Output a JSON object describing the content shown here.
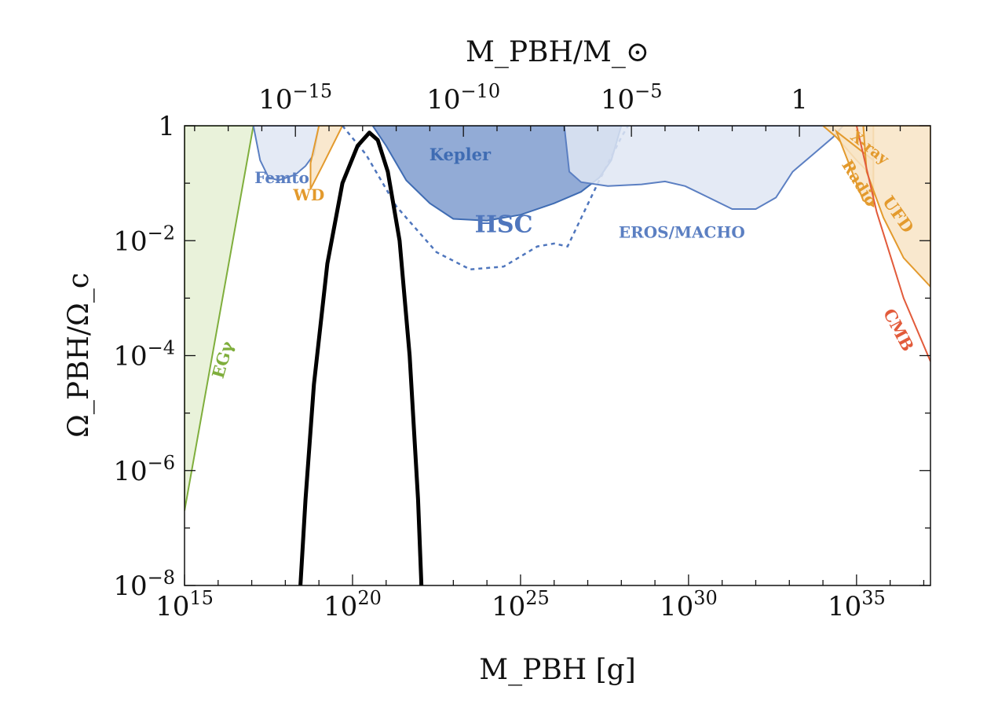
{
  "chart_data": {
    "type": "area",
    "title": "",
    "xlabel": "M_PBH [g]",
    "ylabel": "Ω_PBH/Ω_c",
    "top_xlabel": "M_PBH/M_⊙",
    "x_log10_range": [
      15,
      37.2
    ],
    "y_log10_range": [
      -8,
      0
    ],
    "x_ticks": [
      {
        "exp": 15,
        "label": "10",
        "sup": "15"
      },
      {
        "exp": 20,
        "label": "10",
        "sup": "20"
      },
      {
        "exp": 25,
        "label": "10",
        "sup": "25"
      },
      {
        "exp": 30,
        "label": "10",
        "sup": "30"
      },
      {
        "exp": 35,
        "label": "10",
        "sup": "35"
      }
    ],
    "top_ticks": [
      {
        "exp": -15,
        "label": "10",
        "sup": "−15"
      },
      {
        "exp": -10,
        "label": "10",
        "sup": "−10"
      },
      {
        "exp": -5,
        "label": "10",
        "sup": "−5"
      },
      {
        "exp": 0,
        "label": "1",
        "sup": ""
      }
    ],
    "y_ticks": [
      {
        "exp": 0,
        "label": "1",
        "sup": ""
      },
      {
        "exp": -2,
        "label": "10",
        "sup": "−2"
      },
      {
        "exp": -4,
        "label": "10",
        "sup": "−4"
      },
      {
        "exp": -6,
        "label": "10",
        "sup": "−6"
      },
      {
        "exp": -8,
        "label": "10",
        "sup": "−8"
      }
    ],
    "solar_mass_log10_g": 33.3,
    "constraints": [
      {
        "name": "EGγ",
        "label_at": [
          16.3,
          -4.1
        ],
        "label_rotate": -74,
        "color": "#7fae3c",
        "fill": "#e5f0d4",
        "filled": true,
        "points": [
          [
            15,
            -6.7
          ],
          [
            17.05,
            0
          ],
          [
            15,
            0
          ]
        ]
      },
      {
        "name": "Femto",
        "label_at": [
          17.9,
          -1.0
        ],
        "label_rotate": 0,
        "color": "#5b7fc2",
        "fill": "#dfe6f3",
        "filled": true,
        "points": [
          [
            17.05,
            0
          ],
          [
            17.25,
            -0.6
          ],
          [
            17.5,
            -0.9
          ],
          [
            17.8,
            -0.95
          ],
          [
            18.3,
            -0.85
          ],
          [
            18.6,
            -0.7
          ],
          [
            18.85,
            -0.5
          ],
          [
            19.0,
            0
          ]
        ]
      },
      {
        "name": "WD",
        "label_at": [
          18.7,
          -1.3
        ],
        "label_rotate": 0,
        "color": "#e39a2d",
        "fill": "#f8e4c6",
        "filled": true,
        "points": [
          [
            18.75,
            -0.65
          ],
          [
            18.75,
            -1.1
          ],
          [
            19.1,
            -0.7
          ],
          [
            19.7,
            0
          ],
          [
            19.0,
            0
          ]
        ]
      },
      {
        "name": "Kepler",
        "label_at": [
          23.2,
          -0.6
        ],
        "label_rotate": 0,
        "color": "#3f6cb3",
        "fill": "#7f9ccf",
        "filled": true,
        "points": [
          [
            20.6,
            0
          ],
          [
            21.0,
            -0.35
          ],
          [
            21.6,
            -0.95
          ],
          [
            22.3,
            -1.35
          ],
          [
            23.0,
            -1.62
          ],
          [
            24.0,
            -1.65
          ],
          [
            25.0,
            -1.55
          ],
          [
            26.0,
            -1.35
          ],
          [
            26.8,
            -1.15
          ],
          [
            27.35,
            -0.9
          ],
          [
            27.7,
            -0.6
          ],
          [
            28.0,
            0
          ]
        ]
      },
      {
        "name": "HSC",
        "label_at": [
          24.5,
          -1.85
        ],
        "label_rotate": 0,
        "color": "#4f76bd",
        "fill": "none",
        "filled": false,
        "dashed": true,
        "points": [
          [
            19.7,
            0
          ],
          [
            20.4,
            -0.5
          ],
          [
            21.3,
            -1.4
          ],
          [
            22.5,
            -2.2
          ],
          [
            23.5,
            -2.5
          ],
          [
            24.5,
            -2.45
          ],
          [
            25.5,
            -2.1
          ],
          [
            26.0,
            -2.05
          ],
          [
            26.4,
            -2.1
          ],
          [
            27.3,
            -1.0
          ],
          [
            28.0,
            -0.2
          ],
          [
            28.2,
            0
          ]
        ]
      },
      {
        "name": "EROS/MACHO",
        "label_at": [
          29.8,
          -1.95
        ],
        "label_rotate": 0,
        "color": "#5b7fc2",
        "fill": "#dfe6f3",
        "filled": true,
        "points": [
          [
            26.3,
            0
          ],
          [
            26.45,
            -0.8
          ],
          [
            26.8,
            -0.98
          ],
          [
            27.6,
            -1.05
          ],
          [
            28.6,
            -1.02
          ],
          [
            29.3,
            -0.97
          ],
          [
            29.9,
            -1.05
          ],
          [
            30.6,
            -1.25
          ],
          [
            31.3,
            -1.45
          ],
          [
            32.0,
            -1.45
          ],
          [
            32.6,
            -1.25
          ],
          [
            33.1,
            -0.8
          ],
          [
            33.7,
            -0.5
          ],
          [
            34.3,
            -0.2
          ],
          [
            34.6,
            0
          ]
        ]
      },
      {
        "name": "X-ray",
        "label_at": [
          35.3,
          -0.45
        ],
        "label_rotate": 38,
        "color": "#e39a2d",
        "fill": "#f8e4c6",
        "filled": true,
        "points": [
          [
            34.0,
            0
          ],
          [
            34.4,
            -0.2
          ],
          [
            35.0,
            -0.6
          ],
          [
            35.5,
            -0.9
          ],
          [
            35.5,
            0
          ]
        ]
      },
      {
        "name": "Radio",
        "label_at": [
          34.95,
          -1.05
        ],
        "label_rotate": 58,
        "color": "#e39a2d",
        "fill": "#f8e4c6",
        "filled": true,
        "points": [
          [
            34.4,
            -0.1
          ],
          [
            35.2,
            -1.3
          ],
          [
            35.5,
            -1.4
          ],
          [
            35.5,
            -0.6
          ]
        ]
      },
      {
        "name": "UFD",
        "label_at": [
          36.1,
          -1.6
        ],
        "label_rotate": 55,
        "color": "#e39a2d",
        "fill": "#f8e4c6",
        "filled": true,
        "points": [
          [
            35.2,
            0
          ],
          [
            35.3,
            -0.8
          ],
          [
            35.8,
            -1.6
          ],
          [
            36.4,
            -2.3
          ],
          [
            37.2,
            -2.8
          ],
          [
            37.2,
            0
          ]
        ]
      },
      {
        "name": "CMB",
        "label_at": [
          36.1,
          -3.6
        ],
        "label_rotate": 62,
        "color": "#e25b3b",
        "fill": "none",
        "filled": false,
        "points": [
          [
            35.0,
            0
          ],
          [
            35.6,
            -1.5
          ],
          [
            36.4,
            -3.0
          ],
          [
            37.2,
            -4.1
          ]
        ]
      }
    ],
    "example_spectrum": {
      "color": "#000000",
      "points": [
        [
          18.45,
          -8
        ],
        [
          18.6,
          -6.5
        ],
        [
          18.85,
          -4.5
        ],
        [
          19.25,
          -2.4
        ],
        [
          19.7,
          -1.0
        ],
        [
          20.15,
          -0.35
        ],
        [
          20.5,
          -0.12
        ],
        [
          20.75,
          -0.25
        ],
        [
          21.05,
          -0.8
        ],
        [
          21.4,
          -2.0
        ],
        [
          21.7,
          -4.0
        ],
        [
          21.95,
          -6.5
        ],
        [
          22.05,
          -8
        ]
      ]
    }
  }
}
